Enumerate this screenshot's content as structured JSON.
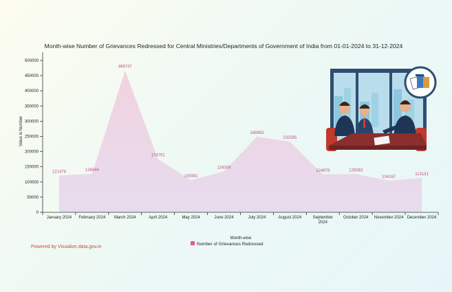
{
  "chart_data": {
    "type": "area",
    "title": "Month-wise Number of Grievances Redressed for Central Ministries/Departments of Government of India from 01-01-2024 to 31-12-2024",
    "xlabel": "Month-wise",
    "ylabel": "Value in Number",
    "categories": [
      "January 2024",
      "February 2024",
      "March 2024",
      "April 2024",
      "May 2024",
      "June 2024",
      "July 2024",
      "August 2024",
      "September 2024",
      "October 2024",
      "November 2024",
      "December 2024"
    ],
    "series": [
      {
        "name": "Number of Grievances Redressed",
        "values": [
          121478,
          126644,
          466747,
          174791,
          105981,
          134306,
          248963,
          232585,
          124879,
          126083,
          104167,
          113131
        ],
        "labels": [
          "121478",
          "126644",
          "466747",
          "174791",
          "105981",
          "134306",
          "248963",
          "232585",
          "124879",
          "126083",
          "104167",
          "113131"
        ]
      }
    ],
    "ylim": [
      0,
      500000
    ],
    "yticks": [
      0,
      50000,
      100000,
      150000,
      200000,
      250000,
      300000,
      350000,
      400000,
      450000,
      500000
    ],
    "ytick_labels": [
      "0",
      "50000",
      "100000",
      "150000",
      "200000",
      "250000",
      "300000",
      "350000",
      "400000",
      "450000",
      "500000"
    ],
    "grid": false,
    "legend_position": "bottom-center",
    "colors": {
      "area_fill": "#ead8ea",
      "area_top": "#f3d3e0",
      "data_label": "#c2537f",
      "legend_swatch": "#e05a9a"
    }
  },
  "footer": {
    "powered_by": "Powered by Visualize.data.gov.in"
  },
  "illustration": {
    "name": "business-meeting-illustration"
  }
}
